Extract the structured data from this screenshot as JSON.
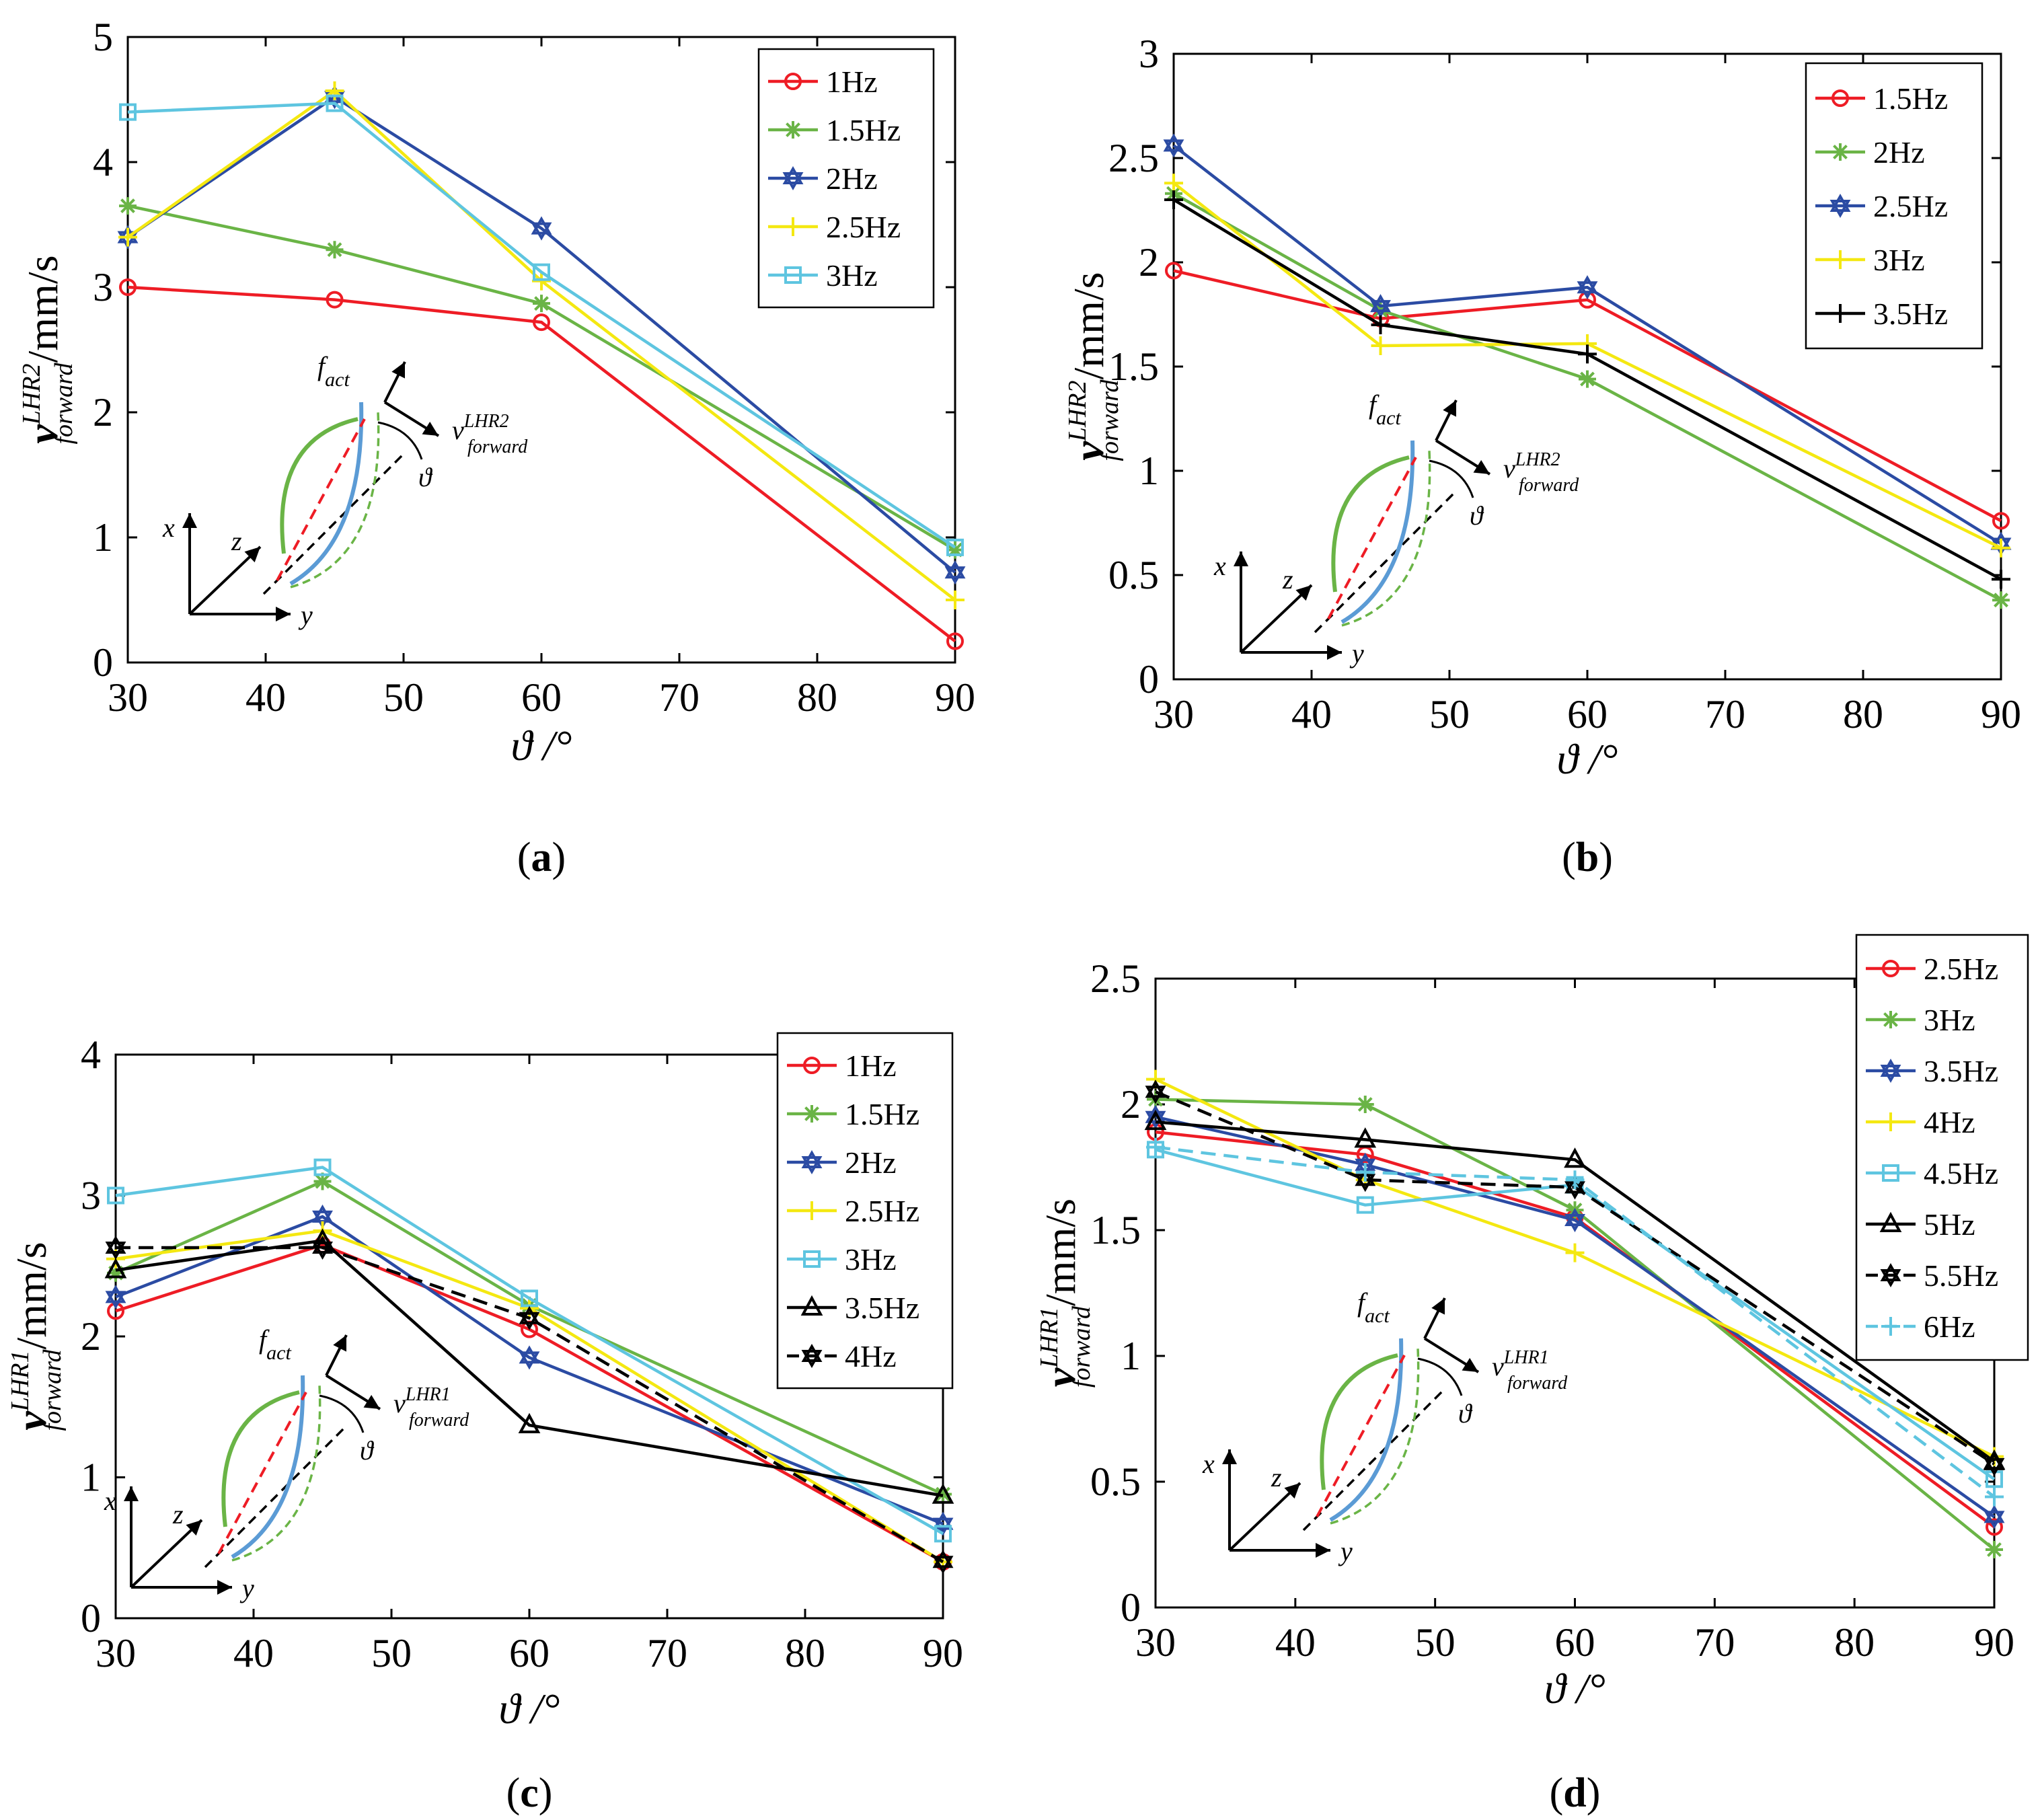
{
  "figure": {
    "panels": [
      {
        "caption_label": "a",
        "y_label": "v_forward^LHR2 /mm/s",
        "y_label_symbol": "v",
        "y_label_sub": "forward",
        "y_label_sup": "LHR2",
        "y_label_unit": "/mm/s",
        "x_label": "ϑ /°",
        "inset": {
          "force_label": "f",
          "force_sub": "act",
          "velocity_label": "v",
          "velocity_sub": "forward",
          "velocity_sup": "LHR2",
          "angle_label": "ϑ",
          "axis_x": "x",
          "axis_y": "y",
          "axis_z": "z"
        }
      },
      {
        "caption_label": "b",
        "y_label": "v_forward^LHR2 /mm/s",
        "y_label_symbol": "v",
        "y_label_sub": "forward",
        "y_label_sup": "LHR2",
        "y_label_unit": "/mm/s",
        "x_label": "ϑ /°",
        "inset": {
          "force_label": "f",
          "force_sub": "act",
          "velocity_label": "v",
          "velocity_sub": "forward",
          "velocity_sup": "LHR2",
          "angle_label": "ϑ",
          "axis_x": "x",
          "axis_y": "y",
          "axis_z": "z"
        }
      },
      {
        "caption_label": "c",
        "y_label": "v_forward^LHR1 /mm/s",
        "y_label_symbol": "v",
        "y_label_sub": "forward",
        "y_label_sup": "LHR1",
        "y_label_unit": "/mm/s",
        "x_label": "ϑ /°",
        "inset": {
          "force_label": "f",
          "force_sub": "act",
          "velocity_label": "v",
          "velocity_sub": "forward",
          "velocity_sup": "LHR1",
          "angle_label": "ϑ",
          "axis_x": "x",
          "axis_y": "y",
          "axis_z": "z"
        }
      },
      {
        "caption_label": "d",
        "y_label": "v_forward^LHR1 /mm/s",
        "y_label_symbol": "v",
        "y_label_sub": "forward",
        "y_label_sup": "LHR1",
        "y_label_unit": "/mm/s",
        "x_label": "ϑ /°",
        "inset": {
          "force_label": "f",
          "force_sub": "act",
          "velocity_label": "v",
          "velocity_sub": "forward",
          "velocity_sup": "LHR1",
          "angle_label": "ϑ",
          "axis_x": "x",
          "axis_y": "y",
          "axis_z": "z"
        }
      }
    ]
  },
  "colors": {
    "red": "#ee1c25",
    "green": "#6ab446",
    "blue": "#2b4ba3",
    "yellow": "#f4e811",
    "cyan": "#5ec5e0",
    "black": "#000000"
  },
  "chart_data": [
    {
      "type": "line",
      "title": "(a)",
      "xlabel": "ϑ /°",
      "ylabel": "v_forward^LHR2 /mm/s",
      "xlim": [
        30,
        90
      ],
      "ylim": [
        0,
        5
      ],
      "xticks": [
        30,
        40,
        50,
        60,
        70,
        80,
        90
      ],
      "yticks": [
        0,
        1,
        2,
        3,
        4,
        5
      ],
      "x": [
        30,
        45,
        60,
        90
      ],
      "legend_position": "top-right",
      "series": [
        {
          "name": "1Hz",
          "color": "red",
          "marker": "circle",
          "dash": false,
          "values": [
            3.0,
            2.9,
            2.72,
            0.17
          ]
        },
        {
          "name": "1.5Hz",
          "color": "green",
          "marker": "asterisk",
          "dash": false,
          "values": [
            3.65,
            3.3,
            2.87,
            0.9
          ]
        },
        {
          "name": "2Hz",
          "color": "blue",
          "marker": "hexagram",
          "dash": false,
          "values": [
            3.4,
            4.52,
            3.47,
            0.72
          ]
        },
        {
          "name": "2.5Hz",
          "color": "yellow",
          "marker": "plus",
          "dash": false,
          "values": [
            3.4,
            4.57,
            3.05,
            0.5
          ]
        },
        {
          "name": "3Hz",
          "color": "cyan",
          "marker": "square",
          "dash": false,
          "values": [
            4.4,
            4.47,
            3.12,
            0.92
          ]
        }
      ]
    },
    {
      "type": "line",
      "title": "(b)",
      "xlabel": "ϑ /°",
      "ylabel": "v_forward^LHR2 /mm/s",
      "xlim": [
        30,
        90
      ],
      "ylim": [
        0,
        3
      ],
      "xticks": [
        30,
        40,
        50,
        60,
        70,
        80,
        90
      ],
      "yticks": [
        0,
        0.5,
        1,
        1.5,
        2,
        2.5,
        3
      ],
      "x": [
        30,
        45,
        60,
        90
      ],
      "legend_position": "top-right",
      "series": [
        {
          "name": "1.5Hz",
          "color": "red",
          "marker": "circle",
          "dash": false,
          "values": [
            1.96,
            1.73,
            1.82,
            0.76
          ]
        },
        {
          "name": "2Hz",
          "color": "green",
          "marker": "asterisk",
          "dash": false,
          "values": [
            2.33,
            1.77,
            1.44,
            0.38
          ]
        },
        {
          "name": "2.5Hz",
          "color": "blue",
          "marker": "hexagram",
          "dash": false,
          "values": [
            2.56,
            1.79,
            1.88,
            0.65
          ]
        },
        {
          "name": "3Hz",
          "color": "yellow",
          "marker": "plus",
          "dash": false,
          "values": [
            2.38,
            1.6,
            1.61,
            0.63
          ]
        },
        {
          "name": "3.5Hz",
          "color": "black",
          "marker": "plus",
          "dash": false,
          "values": [
            2.3,
            1.7,
            1.56,
            0.48
          ]
        }
      ]
    },
    {
      "type": "line",
      "title": "(c)",
      "xlabel": "ϑ /°",
      "ylabel": "v_forward^LHR1 /mm/s",
      "xlim": [
        30,
        90
      ],
      "ylim": [
        0,
        4
      ],
      "xticks": [
        30,
        40,
        50,
        60,
        70,
        80,
        90
      ],
      "yticks": [
        0,
        1,
        2,
        3,
        4
      ],
      "x": [
        30,
        45,
        60,
        90
      ],
      "legend_position": "top-right",
      "series": [
        {
          "name": "1Hz",
          "color": "red",
          "marker": "circle",
          "dash": false,
          "values": [
            2.18,
            2.65,
            2.05,
            0.4
          ]
        },
        {
          "name": "1.5Hz",
          "color": "green",
          "marker": "asterisk",
          "dash": false,
          "values": [
            2.45,
            3.1,
            2.22,
            0.88
          ]
        },
        {
          "name": "2Hz",
          "color": "blue",
          "marker": "hexagram",
          "dash": false,
          "values": [
            2.28,
            2.85,
            1.85,
            0.67
          ]
        },
        {
          "name": "2.5Hz",
          "color": "yellow",
          "marker": "plus",
          "dash": false,
          "values": [
            2.55,
            2.75,
            2.2,
            0.4
          ]
        },
        {
          "name": "3Hz",
          "color": "cyan",
          "marker": "square",
          "dash": false,
          "values": [
            3.0,
            3.2,
            2.27,
            0.6
          ]
        },
        {
          "name": "3.5Hz",
          "color": "black",
          "marker": "triangle",
          "dash": false,
          "values": [
            2.47,
            2.68,
            1.37,
            0.87
          ]
        },
        {
          "name": "4Hz",
          "color": "black",
          "marker": "hexagram",
          "dash": true,
          "values": [
            2.63,
            2.63,
            2.13,
            0.4
          ]
        }
      ]
    },
    {
      "type": "line",
      "title": "(d)",
      "xlabel": "ϑ /°",
      "ylabel": "v_forward^LHR1 /mm/s",
      "xlim": [
        30,
        90
      ],
      "ylim": [
        0,
        2.5
      ],
      "xticks": [
        30,
        40,
        50,
        60,
        70,
        80,
        90
      ],
      "yticks": [
        0,
        0.5,
        1,
        1.5,
        2,
        2.5
      ],
      "x": [
        30,
        45,
        60,
        90
      ],
      "legend_position": "top-right",
      "series": [
        {
          "name": "2.5Hz",
          "color": "red",
          "marker": "circle",
          "dash": false,
          "values": [
            1.89,
            1.8,
            1.55,
            0.32
          ]
        },
        {
          "name": "3Hz",
          "color": "green",
          "marker": "asterisk",
          "dash": false,
          "values": [
            2.02,
            2.0,
            1.58,
            0.23
          ]
        },
        {
          "name": "3.5Hz",
          "color": "blue",
          "marker": "hexagram",
          "dash": false,
          "values": [
            1.95,
            1.76,
            1.54,
            0.36
          ]
        },
        {
          "name": "4Hz",
          "color": "yellow",
          "marker": "plus",
          "dash": false,
          "values": [
            2.1,
            1.7,
            1.41,
            0.6
          ]
        },
        {
          "name": "4.5Hz",
          "color": "cyan",
          "marker": "square",
          "dash": false,
          "values": [
            1.82,
            1.6,
            1.68,
            0.51
          ]
        },
        {
          "name": "5Hz",
          "color": "black",
          "marker": "triangle",
          "dash": false,
          "values": [
            1.93,
            1.86,
            1.78,
            0.58
          ]
        },
        {
          "name": "5.5Hz",
          "color": "black",
          "marker": "hexagram",
          "dash": true,
          "values": [
            2.05,
            1.7,
            1.67,
            0.57
          ]
        },
        {
          "name": "6Hz",
          "color": "cyan",
          "marker": "plus",
          "dash": true,
          "values": [
            1.83,
            1.73,
            1.7,
            0.44
          ]
        }
      ]
    }
  ]
}
